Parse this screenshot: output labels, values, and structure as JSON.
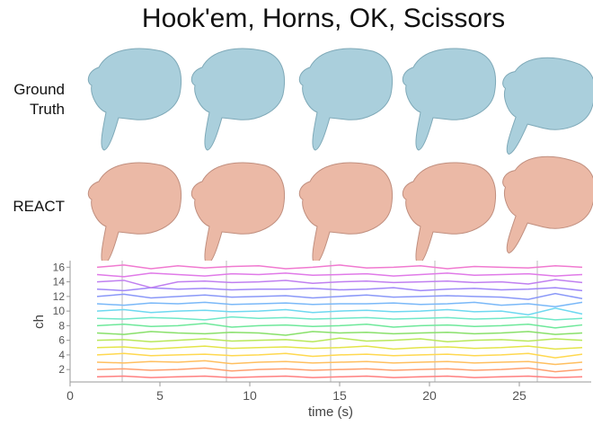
{
  "title": "Hook'em, Horns, OK, Scissors",
  "row_labels": [
    "Ground Truth",
    "REACT"
  ],
  "chart_data": {
    "type": "line",
    "xlabel": "time (s)",
    "ylabel": "ch",
    "xlim": [
      0,
      29
    ],
    "ylim": [
      0.3,
      16.9
    ],
    "xticks": [
      0,
      5,
      10,
      15,
      20,
      25
    ],
    "yticks": [
      2,
      4,
      6,
      8,
      10,
      12,
      14,
      16
    ],
    "segment_boundaries": [
      2.9,
      8.7,
      14.5,
      20.3,
      26.0
    ],
    "x": [
      1.5,
      3,
      4.5,
      6,
      7.5,
      9,
      10.5,
      12,
      13.5,
      15,
      16.5,
      18,
      19.5,
      21,
      22.5,
      24,
      25.5,
      27,
      28.5
    ],
    "series": [
      {
        "color": "#ff7f7f",
        "values": [
          1,
          1.1,
          0.9,
          1,
          1.1,
          0.9,
          1,
          1.1,
          0.9,
          1,
          1.1,
          0.9,
          1,
          1.1,
          0.9,
          1,
          1.1,
          0.9,
          1
        ]
      },
      {
        "color": "#ff9f6f",
        "values": [
          2,
          2.1,
          1.9,
          2,
          2.2,
          1.8,
          2,
          2.1,
          1.9,
          2,
          2.1,
          1.9,
          2,
          2.1,
          1.9,
          2,
          2.2,
          1.7,
          2
        ]
      },
      {
        "color": "#ffbf5f",
        "values": [
          3,
          2.9,
          3.1,
          3,
          3.2,
          2.8,
          3,
          3.1,
          2.9,
          3,
          3.1,
          2.9,
          3,
          3.1,
          2.9,
          3,
          3.1,
          2.7,
          3
        ]
      },
      {
        "color": "#ffd84f",
        "values": [
          4,
          4.2,
          3.9,
          4,
          4.1,
          3.9,
          4,
          4.2,
          3.8,
          4,
          4.1,
          3.9,
          4,
          4.1,
          3.9,
          4,
          4.2,
          3.6,
          4.1
        ]
      },
      {
        "color": "#e4e44a",
        "values": [
          5,
          5.1,
          4.8,
          5,
          5.2,
          4.9,
          5,
          5.1,
          4.9,
          5,
          5.2,
          4.8,
          5,
          5.1,
          4.9,
          5,
          5.2,
          4.8,
          5
        ]
      },
      {
        "color": "#b8e85a",
        "values": [
          6,
          6.1,
          5.8,
          6,
          6.2,
          5.9,
          6,
          6.1,
          5.8,
          6.3,
          5.9,
          6,
          6.2,
          5.8,
          6,
          6.1,
          5.9,
          6.2,
          6
        ]
      },
      {
        "color": "#88e06a",
        "values": [
          7,
          6.8,
          7.2,
          7,
          6.9,
          7.1,
          7,
          6.7,
          7.2,
          7,
          7.1,
          6.9,
          7,
          7.1,
          6.9,
          7,
          7.2,
          6.8,
          7
        ]
      },
      {
        "color": "#6ee89a",
        "values": [
          8,
          8.2,
          7.9,
          8,
          8.3,
          7.8,
          8,
          8.1,
          7.9,
          8,
          8.2,
          7.8,
          8,
          8.1,
          7.9,
          8,
          8.2,
          7.7,
          8.1
        ]
      },
      {
        "color": "#6ee8c8",
        "values": [
          9,
          8.9,
          9.1,
          9,
          8.8,
          9.2,
          9,
          9.1,
          8.9,
          9,
          9.1,
          8.9,
          9,
          9.1,
          8.9,
          9,
          9.2,
          8.8,
          9
        ]
      },
      {
        "color": "#6ed8f0",
        "values": [
          10,
          10.2,
          9.8,
          10,
          10.1,
          9.9,
          10,
          10.2,
          9.8,
          10,
          10.1,
          9.9,
          10,
          10.2,
          9.9,
          10,
          9.5,
          10.4,
          9.6
        ]
      },
      {
        "color": "#7ab8f8",
        "values": [
          11,
          10.8,
          11.1,
          11,
          11.2,
          10.9,
          11,
          11.1,
          10.9,
          11,
          11,
          11.1,
          10.9,
          11,
          11.2,
          10.8,
          11,
          10.6,
          11.2
        ]
      },
      {
        "color": "#8a98f8",
        "values": [
          12,
          12.3,
          11.8,
          12,
          12.2,
          11.9,
          12,
          12.1,
          11.8,
          12,
          12.2,
          11.9,
          12,
          12.1,
          12,
          11.9,
          11.6,
          12.4,
          11.7
        ]
      },
      {
        "color": "#a088f8",
        "values": [
          13,
          12.8,
          13.2,
          13,
          13.1,
          12.9,
          13,
          13,
          13.1,
          12.9,
          13,
          13.2,
          12.8,
          13,
          13.1,
          12.9,
          13,
          13.2,
          12.8
        ]
      },
      {
        "color": "#c080f0",
        "values": [
          14,
          14.2,
          13.2,
          14,
          14.1,
          13.9,
          14,
          14.2,
          13.8,
          14,
          14.1,
          13.9,
          14,
          14.1,
          13.9,
          14,
          13.7,
          14.3,
          13.9
        ]
      },
      {
        "color": "#e07ae8",
        "values": [
          15,
          14.7,
          15.2,
          15,
          14.8,
          15.1,
          15,
          15.2,
          14.9,
          15,
          15.1,
          14.8,
          15,
          15.2,
          14.9,
          15,
          15.1,
          14.8,
          15
        ]
      },
      {
        "color": "#f07ad0",
        "values": [
          16,
          16.3,
          15.8,
          16.2,
          15.9,
          16.1,
          16.2,
          15.8,
          16,
          16.3,
          15.9,
          16,
          16.2,
          15.8,
          16.1,
          16,
          15.9,
          16.2,
          16
        ]
      }
    ]
  }
}
